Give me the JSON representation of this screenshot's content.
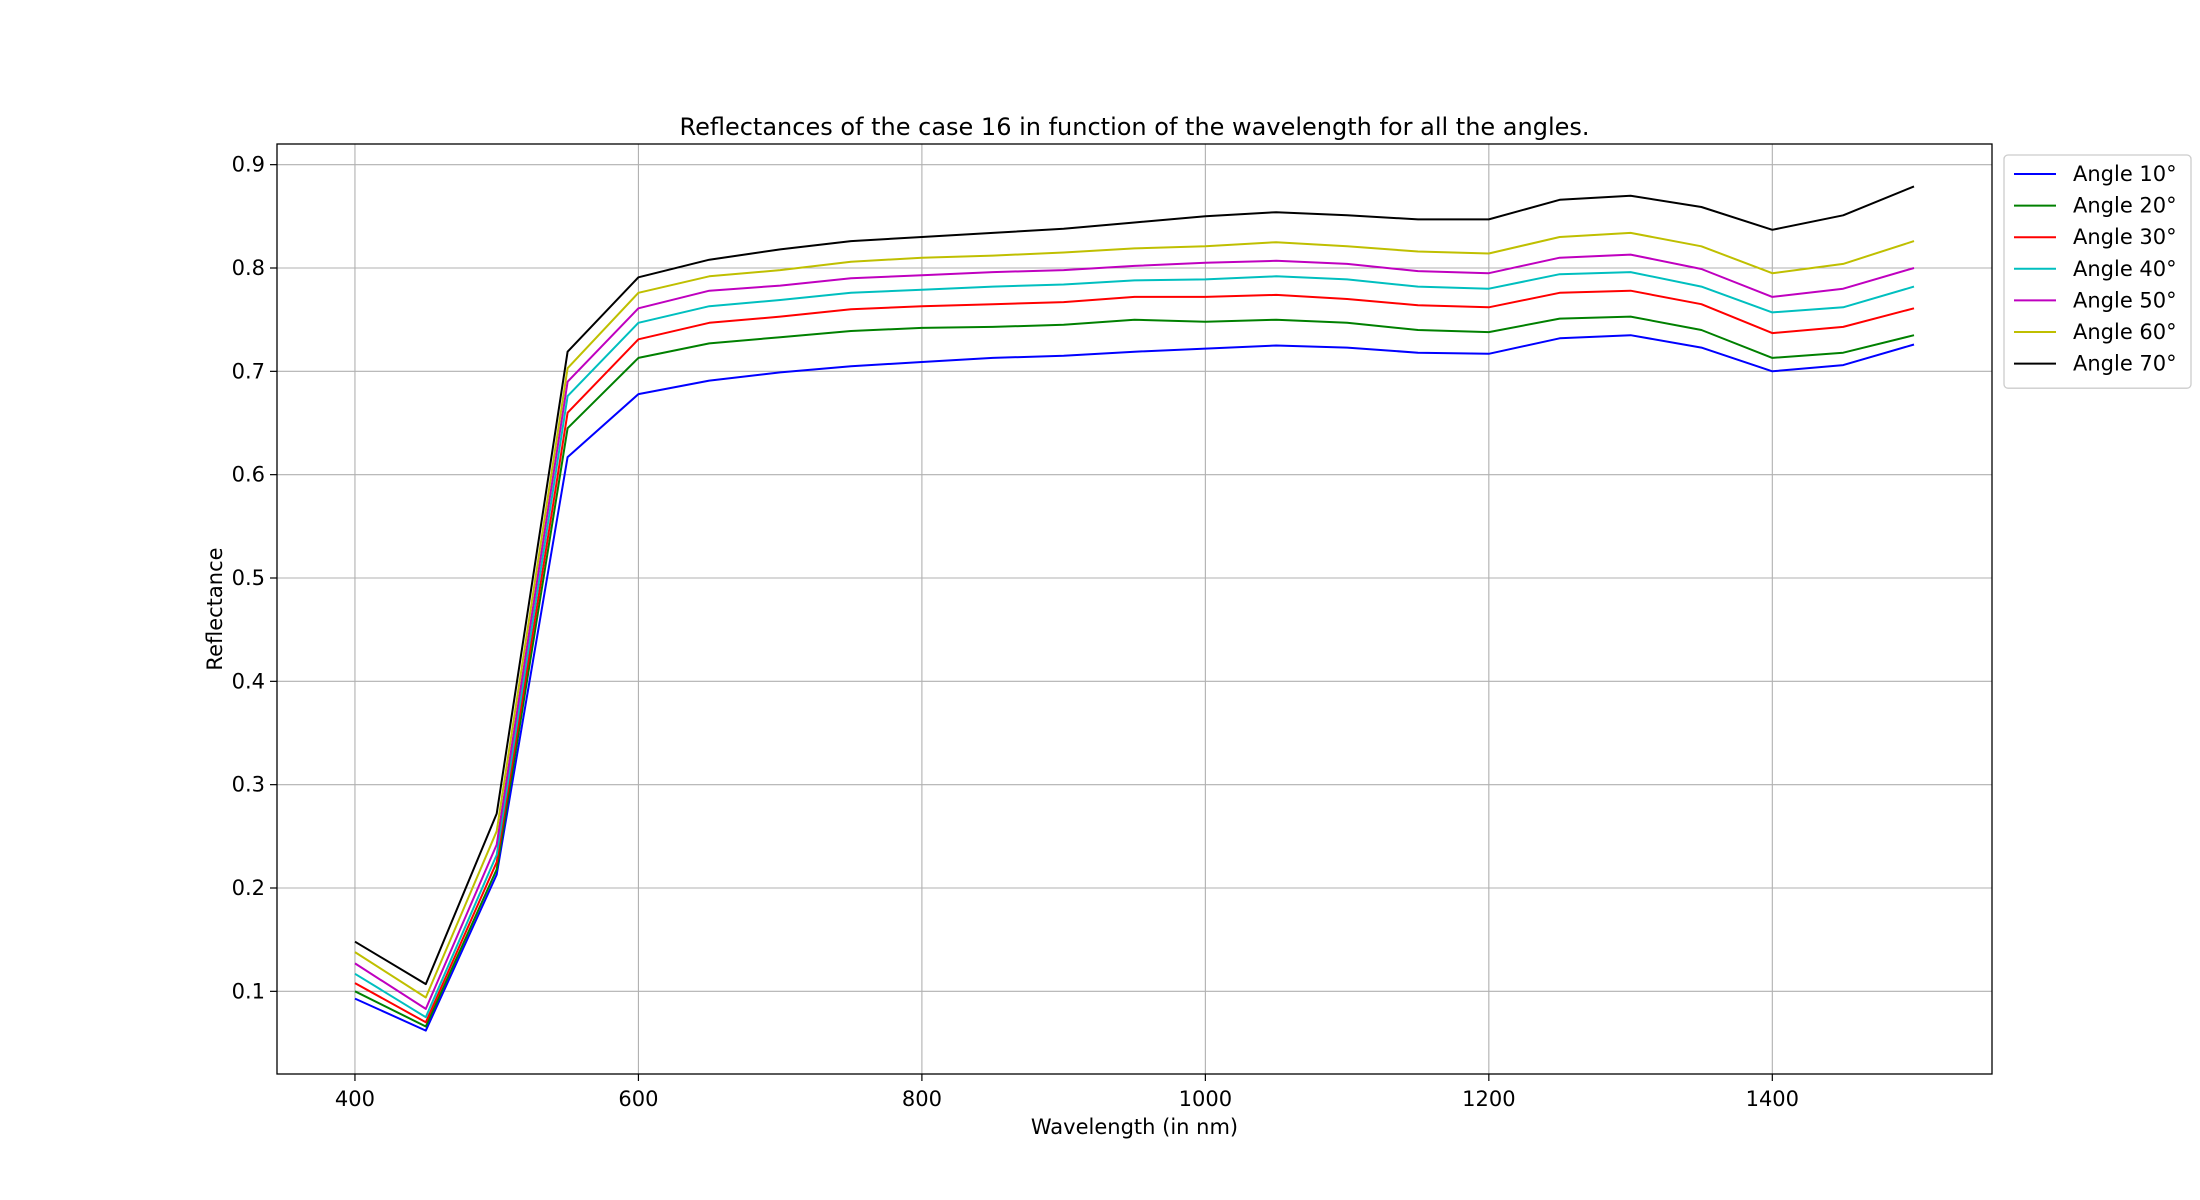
{
  "chart_data": {
    "type": "line",
    "title": "Reflectances of the case 16 in function of the wavelength for all the angles.",
    "xlabel": "Wavelength (in nm)",
    "ylabel": "Reflectance",
    "xlim": [
      345,
      1555
    ],
    "ylim": [
      0.02,
      0.92
    ],
    "xticks": [
      400,
      600,
      800,
      1000,
      1200,
      1400
    ],
    "yticks": [
      0.1,
      0.2,
      0.3,
      0.4,
      0.5,
      0.6,
      0.7,
      0.8,
      0.9
    ],
    "grid": true,
    "legend_position": "outside-top-right",
    "x": [
      400,
      450,
      500,
      550,
      600,
      650,
      700,
      750,
      800,
      850,
      900,
      950,
      1000,
      1050,
      1100,
      1150,
      1200,
      1250,
      1300,
      1350,
      1400,
      1450,
      1500
    ],
    "series": [
      {
        "name": "Angle 10°",
        "color": "#0000ff",
        "values": [
          0.093,
          0.062,
          0.213,
          0.617,
          0.678,
          0.691,
          0.699,
          0.705,
          0.709,
          0.713,
          0.715,
          0.719,
          0.722,
          0.725,
          0.723,
          0.718,
          0.717,
          0.732,
          0.735,
          0.723,
          0.7,
          0.706,
          0.726
        ]
      },
      {
        "name": "Angle 20°",
        "color": "#008000",
        "values": [
          0.1,
          0.066,
          0.218,
          0.645,
          0.713,
          0.727,
          0.733,
          0.739,
          0.742,
          0.743,
          0.745,
          0.75,
          0.748,
          0.75,
          0.747,
          0.74,
          0.738,
          0.751,
          0.753,
          0.74,
          0.713,
          0.718,
          0.735
        ]
      },
      {
        "name": "Angle 30°",
        "color": "#ff0000",
        "values": [
          0.108,
          0.07,
          0.225,
          0.66,
          0.731,
          0.747,
          0.753,
          0.76,
          0.763,
          0.765,
          0.767,
          0.772,
          0.772,
          0.774,
          0.77,
          0.764,
          0.762,
          0.776,
          0.778,
          0.765,
          0.737,
          0.743,
          0.761
        ]
      },
      {
        "name": "Angle 40°",
        "color": "#00bfbf",
        "values": [
          0.117,
          0.075,
          0.232,
          0.676,
          0.747,
          0.763,
          0.769,
          0.776,
          0.779,
          0.782,
          0.784,
          0.788,
          0.789,
          0.792,
          0.789,
          0.782,
          0.78,
          0.794,
          0.796,
          0.782,
          0.757,
          0.762,
          0.782
        ]
      },
      {
        "name": "Angle 50°",
        "color": "#bf00bf",
        "values": [
          0.127,
          0.083,
          0.242,
          0.69,
          0.761,
          0.778,
          0.783,
          0.79,
          0.793,
          0.796,
          0.798,
          0.802,
          0.805,
          0.807,
          0.804,
          0.797,
          0.795,
          0.81,
          0.813,
          0.799,
          0.772,
          0.78,
          0.8
        ]
      },
      {
        "name": "Angle 60°",
        "color": "#bfbf00",
        "values": [
          0.138,
          0.094,
          0.255,
          0.703,
          0.776,
          0.792,
          0.798,
          0.806,
          0.81,
          0.812,
          0.815,
          0.819,
          0.821,
          0.825,
          0.821,
          0.816,
          0.814,
          0.83,
          0.834,
          0.821,
          0.795,
          0.804,
          0.826
        ]
      },
      {
        "name": "Angle 70°",
        "color": "#000000",
        "values": [
          0.148,
          0.107,
          0.272,
          0.719,
          0.791,
          0.808,
          0.818,
          0.826,
          0.83,
          0.834,
          0.838,
          0.844,
          0.85,
          0.854,
          0.851,
          0.847,
          0.847,
          0.866,
          0.87,
          0.859,
          0.837,
          0.851,
          0.879
        ]
      }
    ]
  }
}
